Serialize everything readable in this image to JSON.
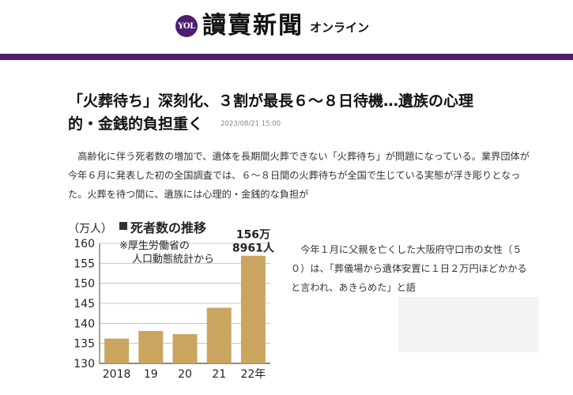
{
  "header": {
    "badge": "YOL",
    "masthead": "讀賣新聞",
    "suffix": "オンライン",
    "brand_color": "#4a1f6e"
  },
  "article": {
    "headline_line1": "「火葬待ち」深刻化、３割が最長６～８日待機…遺族の心理",
    "headline_line2": "的・金銭的負担重く",
    "timestamp": "2023/08/21 15:00",
    "paragraph1": "高齢化に伴う死者数の増加で、遺体を長期間火葬できない「火葬待ち」が問題になっている。業界団体が今年６月に発表した初の全国調査では、６～８日間の火葬待ちが全国で生じている実態が浮き彫りとなった。火葬を待つ間に、遺族には心理的・金銭的な負担が",
    "paragraph2": "今年１月に父親を亡くした大阪府守口市の女性（５０）は、「葬儀場から遺体安置に１日２万円ほどかかると言われ、あきらめた」と語"
  },
  "chart_data": {
    "type": "bar",
    "title": "死者数の推移",
    "ylabel": "（万人）",
    "source_line1": "※厚生労働省の",
    "source_line2": "人口動態統計から",
    "categories": [
      "2018",
      "19",
      "20",
      "21",
      "22年"
    ],
    "values": [
      136.2,
      138.1,
      137.3,
      143.9,
      156.9
    ],
    "ylim": [
      130,
      160
    ],
    "yticks": [
      130,
      135,
      140,
      145,
      150,
      155,
      160
    ],
    "annotation_line1": "156万",
    "annotation_line2": "8961人",
    "bar_color": "#c9a560",
    "grid": true
  }
}
